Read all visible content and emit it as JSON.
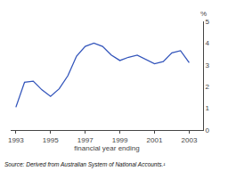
{
  "chart_data": {
    "type": "line",
    "x": [
      1993,
      1993.5,
      1994,
      1994.5,
      1995,
      1995.5,
      1996,
      1996.5,
      1997,
      1997.5,
      1998,
      1998.5,
      1999,
      1999.5,
      2000,
      2000.5,
      2001,
      2001.5,
      2002,
      2002.5,
      2003
    ],
    "values": [
      1.05,
      2.2,
      2.25,
      1.85,
      1.55,
      1.9,
      2.5,
      3.4,
      3.85,
      4.0,
      3.85,
      3.45,
      3.2,
      3.35,
      3.45,
      3.25,
      3.05,
      3.15,
      3.55,
      3.65,
      3.1
    ],
    "color": "#3355bb",
    "xlabel": "financial year ending",
    "ylabel": "%",
    "source": "Source: Derived from Australian System of National Accounts.¹",
    "xlim": [
      1992.7,
      2003.8
    ],
    "ylim": [
      0,
      5
    ],
    "xticks": [
      1993,
      1995,
      1997,
      1999,
      2001,
      2003
    ],
    "yticks": [
      0,
      1,
      2,
      3,
      4,
      5
    ],
    "grid": false
  }
}
